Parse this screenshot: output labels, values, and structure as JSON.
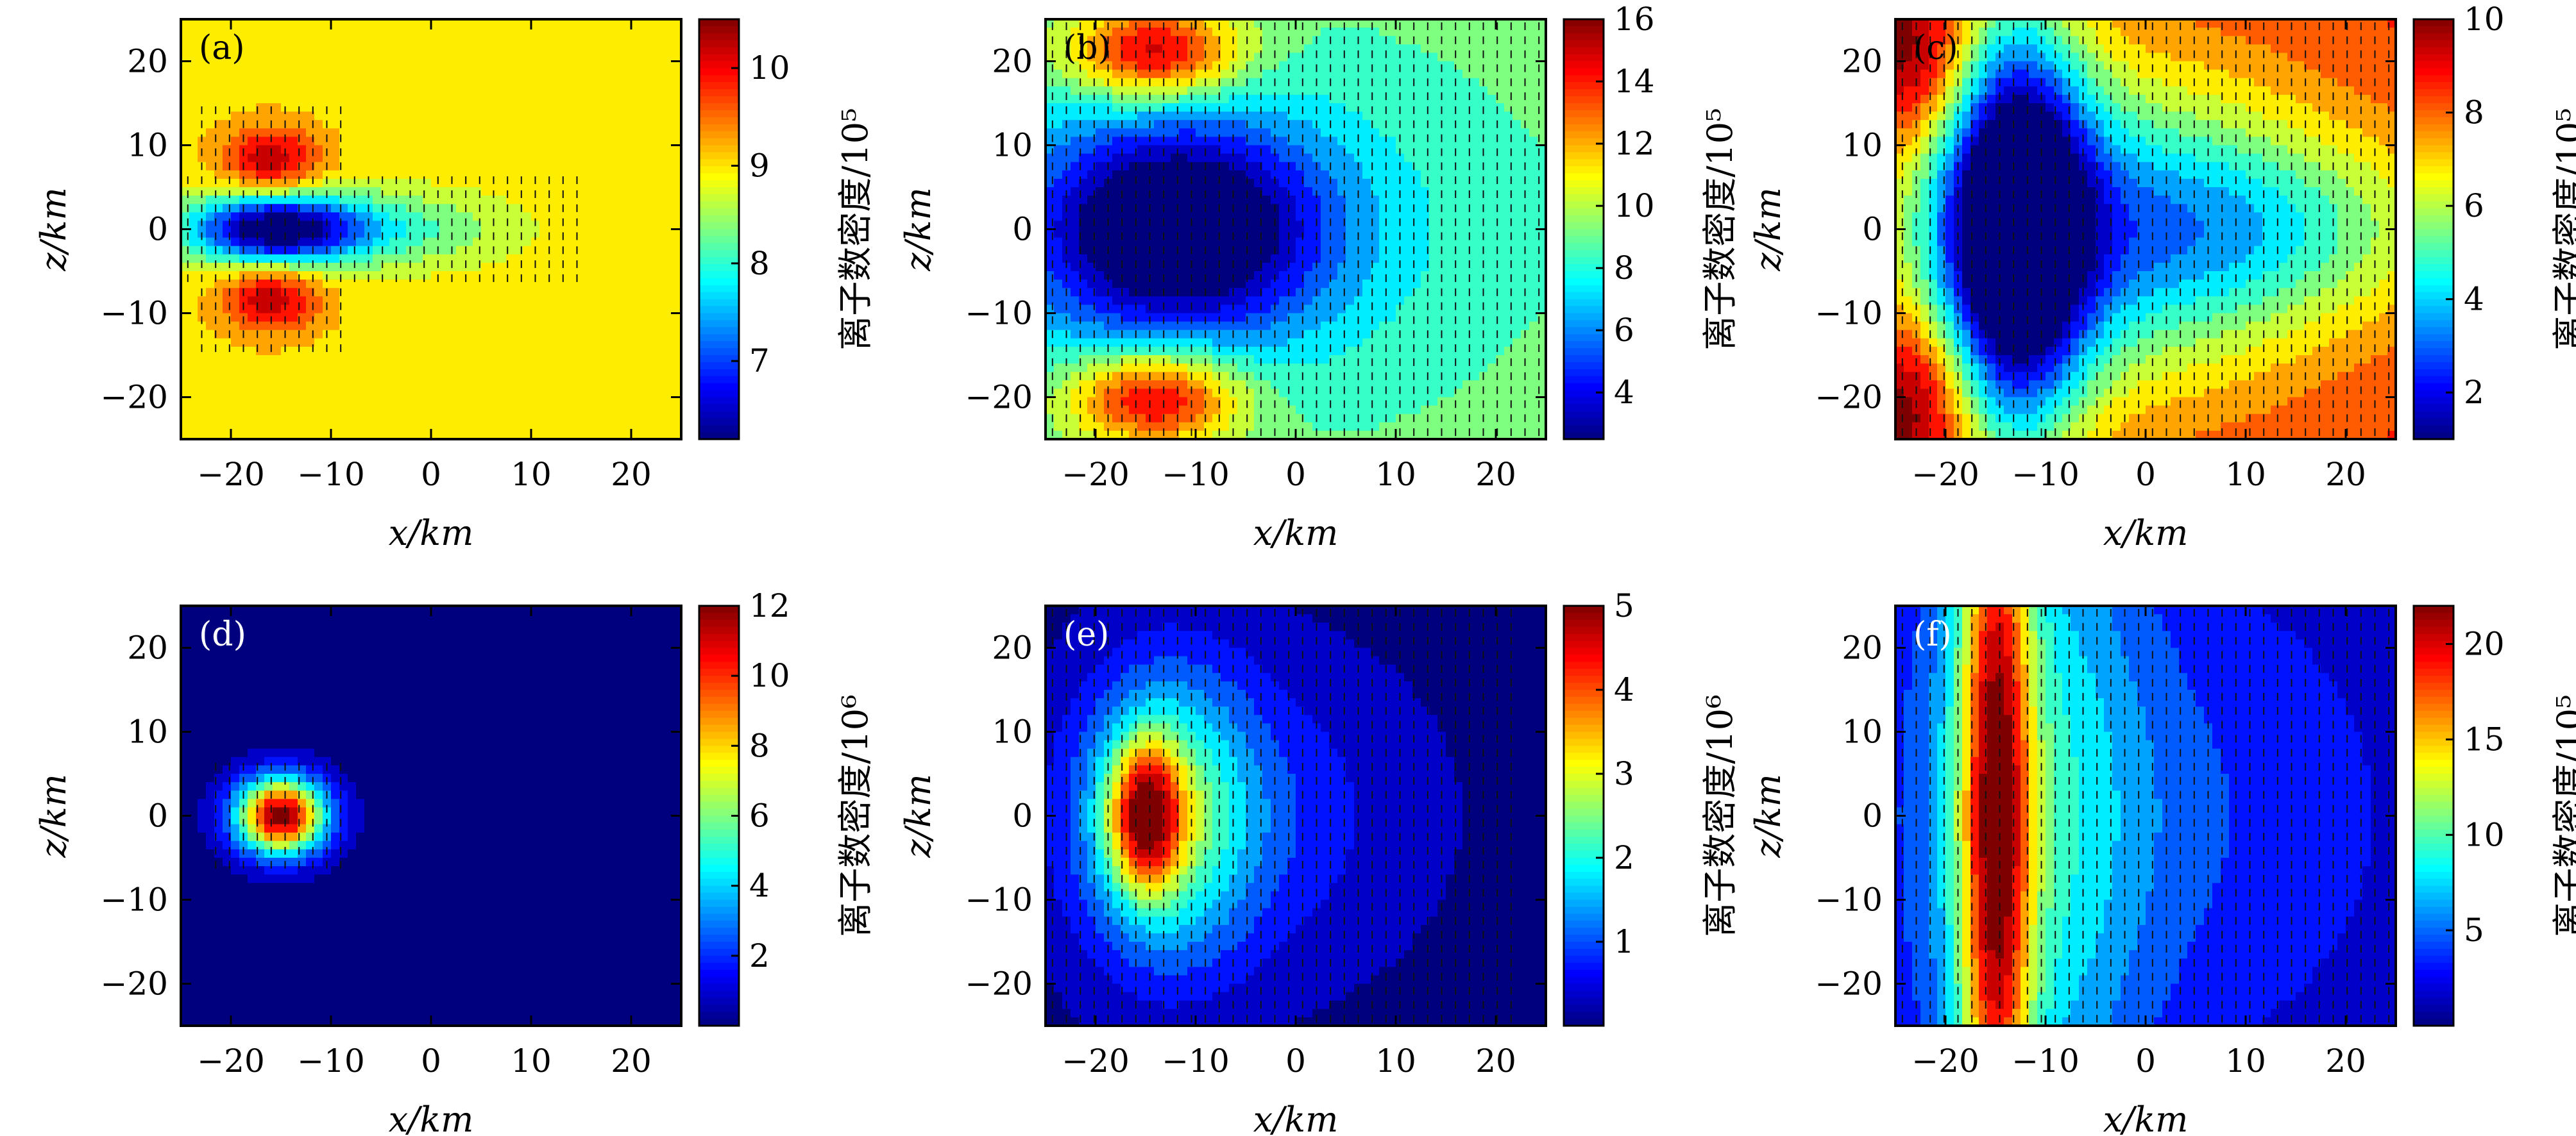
{
  "figure": {
    "colormap": [
      "#00007f",
      "#0000ff",
      "#007fff",
      "#00ffff",
      "#7fff7f",
      "#ffff00",
      "#ff7f00",
      "#ff0000",
      "#7f0000"
    ]
  },
  "chart_data": [
    {
      "type": "heatmap",
      "panel": "(a)",
      "xlabel": "x/km",
      "ylabel": "z/km",
      "xlim": [
        -25,
        25
      ],
      "ylim": [
        -25,
        25
      ],
      "x_ticks": [
        "−20",
        "−10",
        "0",
        "10",
        "20"
      ],
      "y_ticks": [
        "20",
        "10",
        "0",
        "−10",
        "−20"
      ],
      "colorbar": {
        "label": "离子数密度/10⁵",
        "range": [
          6.2,
          10.5
        ],
        "ticks": [
          "7",
          "8",
          "9",
          "10"
        ]
      },
      "background_value": 9.0,
      "blobs": [
        {
          "x": -16,
          "z": 0,
          "sx": 6,
          "sz": 3,
          "value": 6.2
        },
        {
          "x": -5,
          "z": 0,
          "sx": 9,
          "sz": 3.2,
          "value": 8.1
        },
        {
          "x": -16,
          "z": 8,
          "sx": 3.5,
          "sz": 3,
          "value": 10.3
        },
        {
          "x": -16,
          "z": -8,
          "sx": 3.5,
          "sz": 3,
          "value": 10.3
        }
      ]
    },
    {
      "type": "heatmap",
      "panel": "(b)",
      "xlabel": "x/km",
      "ylabel": "z/km",
      "xlim": [
        -25,
        25
      ],
      "ylim": [
        -25,
        25
      ],
      "x_ticks": [
        "−20",
        "−10",
        "0",
        "10",
        "20"
      ],
      "y_ticks": [
        "20",
        "10",
        "0",
        "−10",
        "−20"
      ],
      "colorbar": {
        "label": "离子数密度/10⁵",
        "range": [
          2.5,
          16
        ],
        "ticks": [
          "4",
          "6",
          "8",
          "10",
          "12",
          "14",
          "16"
        ]
      },
      "background_value": 9.0,
      "blobs": [
        {
          "x": -12,
          "z": 0,
          "sx": 10,
          "sz": 9,
          "value": 2.5
        },
        {
          "x": -10,
          "z": 0,
          "sx": 17,
          "sz": 12,
          "value": 6.5
        },
        {
          "x": -14,
          "z": 21,
          "sx": 6,
          "sz": 4,
          "value": 15.5
        },
        {
          "x": -14,
          "z": -20,
          "sx": 6,
          "sz": 4,
          "value": 15.5
        }
      ]
    },
    {
      "type": "heatmap",
      "panel": "(c)",
      "xlabel": "x/km",
      "ylabel": "z/km",
      "xlim": [
        -25,
        25
      ],
      "ylim": [
        -25,
        25
      ],
      "x_ticks": [
        "−20",
        "−10",
        "0",
        "10",
        "20"
      ],
      "y_ticks": [
        "20",
        "10",
        "0",
        "−10",
        "−20"
      ],
      "colorbar": {
        "label": "离子数密度/10⁵",
        "range": [
          1,
          10
        ],
        "ticks": [
          "2",
          "4",
          "6",
          "8",
          "10"
        ]
      },
      "background_value": 8.6,
      "blobs": [
        {
          "x": -13,
          "z": 0,
          "sx": 5,
          "sz": 18,
          "value": 1.0
        },
        {
          "x": -5,
          "z": 0,
          "sx": 16,
          "sz": 14,
          "value": 4.0
        },
        {
          "x": 15,
          "z": 0,
          "sx": 14,
          "sz": 8,
          "value": 6.5
        },
        {
          "x": -23,
          "z": -20,
          "sx": 4,
          "sz": 7,
          "value": 11.0
        },
        {
          "x": -23,
          "z": 20,
          "sx": 4,
          "sz": 7,
          "value": 11.0
        }
      ]
    },
    {
      "type": "heatmap",
      "panel": "(d)",
      "xlabel": "x/km",
      "ylabel": "z/km",
      "xlim": [
        -25,
        25
      ],
      "ylim": [
        -25,
        25
      ],
      "x_ticks": [
        "−20",
        "−10",
        "0",
        "10",
        "20"
      ],
      "y_ticks": [
        "20",
        "10",
        "0",
        "−10",
        "−20"
      ],
      "colorbar": {
        "label": "离子数密度/10⁶",
        "range": [
          0,
          12
        ],
        "ticks": [
          "2",
          "4",
          "6",
          "8",
          "10",
          "12"
        ]
      },
      "background_value": 0.0,
      "blobs": [
        {
          "x": -15,
          "z": 0,
          "sx": 3.2,
          "sz": 3.2,
          "value": 12.0
        }
      ]
    },
    {
      "type": "heatmap",
      "panel": "(e)",
      "xlabel": "x/km",
      "ylabel": "z/km",
      "xlim": [
        -25,
        25
      ],
      "ylim": [
        -25,
        25
      ],
      "x_ticks": [
        "−20",
        "−10",
        "0",
        "10",
        "20"
      ],
      "y_ticks": [
        "20",
        "10",
        "0",
        "−10",
        "−20"
      ],
      "colorbar": {
        "label": "离子数密度/10⁶",
        "range": [
          0,
          5
        ],
        "ticks": [
          "1",
          "2",
          "3",
          "4",
          "5"
        ]
      },
      "background_value": 0.0,
      "blobs": [
        {
          "x": -15,
          "z": 0,
          "sx": 2.5,
          "sz": 6,
          "value": 3.0
        },
        {
          "x": -13,
          "z": 0,
          "sx": 6,
          "sz": 12,
          "value": 2.0
        },
        {
          "x": -6,
          "z": 0,
          "sx": 13,
          "sz": 14,
          "value": 0.8
        }
      ]
    },
    {
      "type": "heatmap",
      "panel": "(f)",
      "xlabel": "x/km",
      "ylabel": "z/km",
      "xlim": [
        -25,
        25
      ],
      "ylim": [
        -25,
        25
      ],
      "x_ticks": [
        "−20",
        "−10",
        "0",
        "10",
        "20"
      ],
      "y_ticks": [
        "20",
        "10",
        "0",
        "−10",
        "−20"
      ],
      "colorbar": {
        "label": "离子数密度/10⁵",
        "range": [
          0,
          22
        ],
        "ticks": [
          "5",
          "10",
          "15",
          "20"
        ]
      },
      "background_value": 1.0,
      "blobs": [
        {
          "x": -15,
          "z": 0,
          "sx": 2.5,
          "sz": 40,
          "value": 16.0
        },
        {
          "x": -12,
          "z": 0,
          "sx": 8,
          "sz": 40,
          "value": 7.0
        },
        {
          "x": 0,
          "z": 0,
          "sx": 18,
          "sz": 22,
          "value": 4.0
        }
      ]
    }
  ]
}
